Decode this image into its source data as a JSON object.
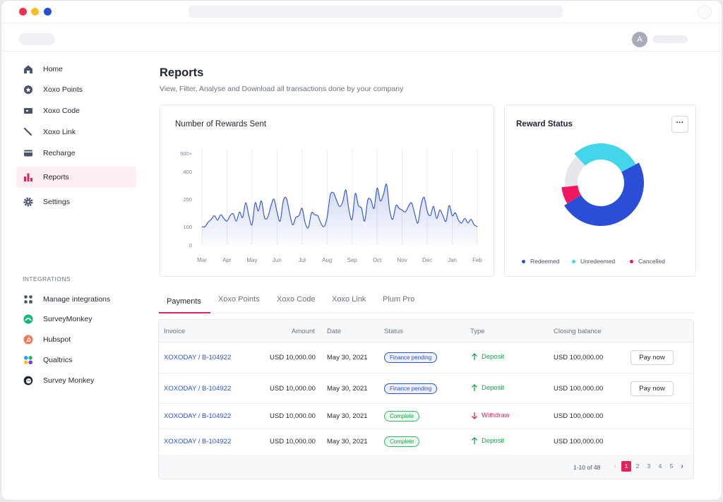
{
  "window": {
    "controls": {
      "close_color": "#f0304f",
      "minimize_color": "#f5c12b",
      "maximize_color": "#2a4fd6"
    }
  },
  "header": {
    "avatar_initial": "A"
  },
  "sidebar": {
    "items": [
      {
        "label": "Home",
        "icon": "home-icon"
      },
      {
        "label": "Xoxo Points",
        "icon": "star-badge-icon"
      },
      {
        "label": "Xoxo Code",
        "icon": "ticket-icon"
      },
      {
        "label": "Xoxo Link",
        "icon": "link-icon"
      },
      {
        "label": "Recharge",
        "icon": "wallet-icon"
      },
      {
        "label": "Reports",
        "icon": "bar-chart-icon",
        "active": true
      },
      {
        "label": "Settings",
        "icon": "gear-icon"
      }
    ],
    "integrations_title": "INTEGRATIONS",
    "integrations": [
      {
        "label": "Manage integrations",
        "icon": "apps-icon"
      },
      {
        "label": "SurveyMonkey",
        "icon": "surveymonkey-icon"
      },
      {
        "label": "Hubspot",
        "icon": "hubspot-icon"
      },
      {
        "label": "Qualtrics",
        "icon": "qualtrics-icon"
      },
      {
        "label": "Survey Monkey",
        "icon": "monkey-icon"
      }
    ]
  },
  "main": {
    "title": "Reports",
    "subtitle": "View, Filter, Analyse and Download all transactions done by your company"
  },
  "chart_data": [
    {
      "type": "area",
      "title": "Number of Rewards Sent",
      "y_ticks": [
        "500+",
        "400",
        "250",
        "100",
        "0"
      ],
      "x_labels": [
        "Mar",
        "Apr",
        "May",
        "Jun",
        "Jul",
        "Aug",
        "Sep",
        "Oct",
        "Nov",
        "Dec",
        "Jan",
        "Feb"
      ],
      "ylim": [
        0,
        500
      ],
      "grid": "vertical",
      "color": "#2a4fd6",
      "values": [
        100,
        100,
        125,
        140,
        160,
        135,
        165,
        145,
        130,
        160,
        170,
        130,
        180,
        150,
        230,
        160,
        110,
        230,
        185,
        240,
        150,
        150,
        210,
        250,
        180,
        130,
        240,
        255,
        175,
        110,
        150,
        160,
        200,
        120,
        95,
        175,
        165,
        160,
        120,
        100,
        150,
        270,
        285,
        245,
        210,
        235,
        300,
        190,
        140,
        280,
        215,
        200,
        130,
        245,
        245,
        200,
        310,
        240,
        275,
        330,
        190,
        140,
        215,
        200,
        190,
        180,
        210,
        230,
        170,
        120,
        215,
        260,
        185,
        160,
        210,
        145,
        190,
        160,
        130,
        215,
        160,
        175,
        135,
        120,
        145,
        120,
        140,
        110,
        100
      ]
    },
    {
      "type": "pie",
      "title": "Reward Status",
      "legend_position": "bottom",
      "series": [
        {
          "name": "Redeemed",
          "value": 49,
          "color": "#2a4fd6"
        },
        {
          "name": "Unredeemed",
          "value": 29,
          "color": "#43d6ea"
        },
        {
          "name": "Cancelled",
          "value": 7,
          "color": "#f0185e"
        },
        {
          "value": 15,
          "color": "#e5e7eb"
        }
      ]
    }
  ],
  "tabs": [
    "Payments",
    "Xoxo Points",
    "Xoxo Code",
    "Xoxo Link",
    "Plum Pro"
  ],
  "table": {
    "columns": [
      "Invoice",
      "Amount",
      "Date",
      "Status",
      "Type",
      "Closing balance"
    ],
    "rows": [
      {
        "invoice": "XOXODAY / B-104922",
        "amount": "USD 10,000.00",
        "date": "May 30, 2021",
        "status": "Finance pending",
        "type": "Deposit",
        "balance": "USD 100,000.00",
        "action": "Pay now"
      },
      {
        "invoice": "XOXODAY / B-104922",
        "amount": "USD 10,000.00",
        "date": "May 30, 2021",
        "status": "Finance pending",
        "type": "Deposit",
        "balance": "USD 100,000.00",
        "action": "Pay now"
      },
      {
        "invoice": "XOXODAY / B-104922",
        "amount": "USD 10,000.00",
        "date": "May 30, 2021",
        "status": "Complete",
        "type": "Withdraw",
        "balance": "USD 100,000.00"
      },
      {
        "invoice": "XOXODAY / B-104922",
        "amount": "USD 10,000.00",
        "date": "May 30, 2021",
        "status": "Complete",
        "type": "Deposit",
        "balance": "USD 100,000.00"
      }
    ],
    "pagination": {
      "range": "1-10 of 48",
      "pages": [
        "1",
        "2",
        "3",
        "4",
        "5"
      ],
      "current": "1"
    }
  }
}
